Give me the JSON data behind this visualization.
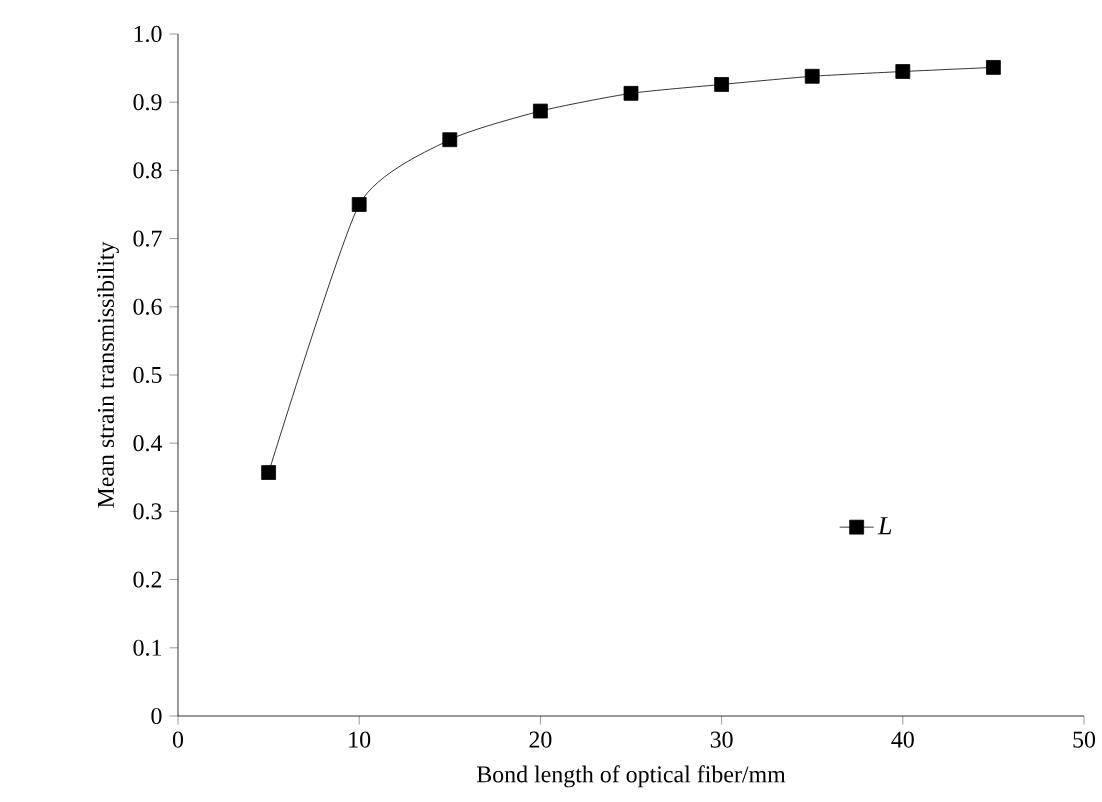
{
  "chart_data": {
    "type": "line",
    "xlabel": "Bond length of optical fiber/mm",
    "ylabel": "Mean strain transmissibility",
    "x": [
      5,
      10,
      15,
      20,
      25,
      30,
      35,
      40,
      45
    ],
    "series": [
      {
        "name": "L",
        "color": "#000000",
        "values": [
          0.357,
          0.75,
          0.845,
          0.887,
          0.913,
          0.926,
          0.938,
          0.945,
          0.951
        ]
      }
    ],
    "xlim": [
      0,
      50
    ],
    "xticks": [
      0,
      10,
      20,
      30,
      40,
      50
    ],
    "ylim": [
      0,
      1.0
    ],
    "yticks": [
      0,
      0.1,
      0.2,
      0.3,
      0.4,
      0.5,
      0.6,
      0.7,
      0.8,
      0.9,
      {
        "value": 1.0,
        "label": "1.0"
      }
    ],
    "marker": "square",
    "line_style": "solid",
    "legend": "bottom right",
    "grid": false
  }
}
